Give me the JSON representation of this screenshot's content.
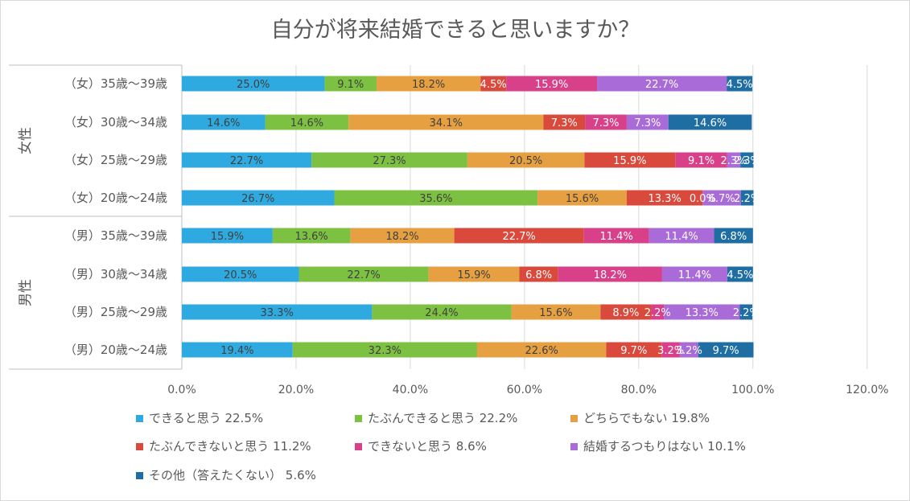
{
  "chart_data": {
    "type": "bar",
    "orientation": "horizontal",
    "stacked": true,
    "title": "自分が将来結婚できると思いますか？",
    "xlim": [
      0,
      120
    ],
    "x_ticks": [
      "0.0%",
      "20.0%",
      "40.0%",
      "60.0%",
      "80.0%",
      "100.0%",
      "120.0%"
    ],
    "x_tick_values": [
      0,
      20,
      40,
      60,
      80,
      100,
      120
    ],
    "grid": true,
    "legend_position": "bottom",
    "groups": [
      {
        "label": "女性",
        "categories": [
          "（女）35歳〜39歳",
          "（女）30歳〜34歳",
          "（女）25歳〜29歳",
          "（女）20歳〜24歳"
        ]
      },
      {
        "label": "男性",
        "categories": [
          "（男）35歳〜39歳",
          "（男）30歳〜34歳",
          "（男）25歳〜29歳",
          "（男）20歳〜24歳"
        ]
      }
    ],
    "categories": [
      "（女）35歳〜39歳",
      "（女）30歳〜34歳",
      "（女）25歳〜29歳",
      "（女）20歳〜24歳",
      "（男）35歳〜39歳",
      "（男）30歳〜34歳",
      "（男）25歳〜29歳",
      "（男）20歳〜24歳"
    ],
    "series": [
      {
        "name": "できると思う",
        "legend_label": "できると思う 22.5%",
        "color": "#2eaae0",
        "values": [
          25.0,
          14.6,
          22.7,
          26.7,
          15.9,
          20.5,
          33.3,
          19.4
        ],
        "labels": [
          "25.0%",
          "14.6%",
          "22.7%",
          "26.7%",
          "15.9%",
          "20.5%",
          "33.3%",
          "19.4%"
        ]
      },
      {
        "name": "たぶんできると思う",
        "legend_label": "たぶんできると思う 22.2%",
        "color": "#7cc142",
        "values": [
          9.1,
          14.6,
          27.3,
          35.6,
          13.6,
          22.7,
          24.4,
          32.3
        ],
        "labels": [
          "9.1%",
          "14.6%",
          "27.3%",
          "35.6%",
          "13.6%",
          "22.7%",
          "24.4%",
          "32.3%"
        ]
      },
      {
        "name": "どちらでもない",
        "legend_label": "どちらでもない 19.8%",
        "color": "#e6a041",
        "values": [
          18.2,
          34.1,
          20.5,
          15.6,
          18.2,
          15.9,
          15.6,
          22.6
        ],
        "labels": [
          "18.2%",
          "34.1%",
          "20.5%",
          "15.6%",
          "18.2%",
          "15.9%",
          "15.6%",
          "22.6%"
        ]
      },
      {
        "name": "たぶんできないと思う",
        "legend_label": "たぶんできないと思う 11.2%",
        "color": "#d94a3d",
        "values": [
          4.5,
          7.3,
          15.9,
          13.3,
          22.7,
          6.8,
          8.9,
          9.7
        ],
        "labels": [
          "4.5%",
          "7.3%",
          "15.9%",
          "13.3%",
          "22.7%",
          "6.8%",
          "8.9%",
          "9.7%"
        ]
      },
      {
        "name": "できないと思う",
        "legend_label": "できないと思う 8.6%",
        "color": "#d9408a",
        "values": [
          15.9,
          7.3,
          9.1,
          0.0,
          11.4,
          18.2,
          2.2,
          3.2
        ],
        "labels": [
          "15.9%",
          "7.3%",
          "9.1%",
          "0.0%",
          "11.4%",
          "18.2%",
          "2.2%",
          "3.2%"
        ]
      },
      {
        "name": "結婚するつもりはない",
        "legend_label": "結婚するつもりはない 10.1%",
        "color": "#a86bd8",
        "values": [
          22.7,
          7.3,
          2.3,
          6.7,
          11.4,
          11.4,
          13.3,
          3.2
        ],
        "labels": [
          "22.7%",
          "7.3%",
          "2.3%",
          "6.7%",
          "11.4%",
          "11.4%",
          "13.3%",
          "3.2%"
        ]
      },
      {
        "name": "その他（答えたくない）",
        "legend_label": "その他（答えたくない） 5.6%",
        "color": "#1f6ea3",
        "values": [
          4.5,
          14.6,
          2.3,
          2.2,
          6.8,
          4.5,
          2.2,
          9.7
        ],
        "labels": [
          "4.5%",
          "14.6%",
          "2.3%",
          "2.2%",
          "6.8%",
          "4.5%",
          "2.2%",
          "9.7%"
        ]
      }
    ]
  }
}
